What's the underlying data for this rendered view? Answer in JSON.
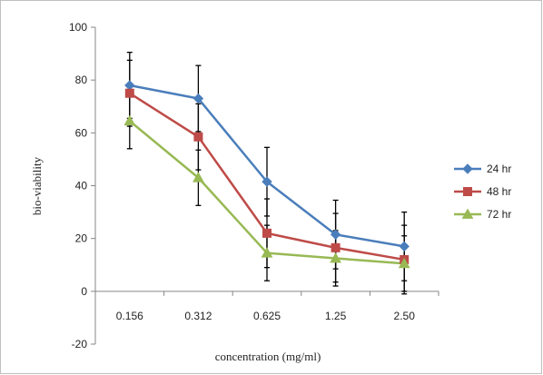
{
  "chart_data": {
    "type": "line",
    "categories": [
      "0.156",
      "0.312",
      "0.625",
      "1.25",
      "2.50"
    ],
    "xlabel": "concentration (mg/ml)",
    "ylabel": "bio-viability",
    "ylim": [
      -20,
      100
    ],
    "yticks": [
      -20,
      0,
      20,
      40,
      60,
      80,
      100
    ],
    "grid": false,
    "legend": "right",
    "series": [
      {
        "name": "24 hr",
        "color": "#4a7ebb",
        "marker": "diamond",
        "values": [
          78,
          73,
          41.5,
          21.5,
          17
        ],
        "error": [
          12.5,
          12.5,
          13,
          13,
          13
        ]
      },
      {
        "name": "48 hr",
        "color": "#be4b48",
        "marker": "square",
        "values": [
          75,
          58.5,
          22,
          16.5,
          12
        ],
        "error": [
          12.5,
          12.5,
          13,
          13,
          13
        ]
      },
      {
        "name": "72 hr",
        "color": "#98b954",
        "marker": "triangle",
        "values": [
          64.5,
          43,
          14.5,
          12.5,
          10.5
        ],
        "error": [
          10.5,
          10.5,
          10.5,
          10.5,
          10.5
        ]
      }
    ]
  }
}
